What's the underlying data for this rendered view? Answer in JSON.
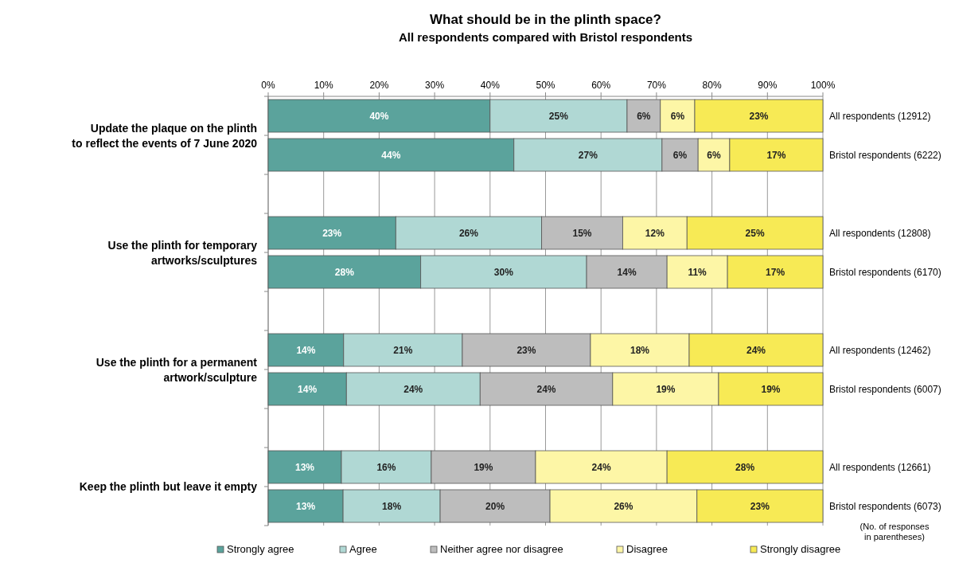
{
  "chart_data": {
    "type": "bar",
    "orientation": "horizontal",
    "stacked": true,
    "title": "What should be in the plinth space?",
    "subtitle": "All respondents compared with Bristol respondents",
    "categories": [
      "All respondents (12912)",
      "Bristol respondents (6222)",
      null,
      "All respondents (12808)",
      "Bristol respondents (6170)",
      null,
      "All respondents (12462)",
      "Bristol respondents (6007)",
      null,
      "All respondents (12661)",
      "Bristol respondents (6073)"
    ],
    "series": [
      {
        "name": "Strongly agree",
        "color": "#5ba39c",
        "values": [
          40.0,
          44.3,
          null,
          23.0,
          27.5,
          null,
          13.6,
          14.1,
          null,
          13.2,
          13.5
        ],
        "value_labels": [
          "40%",
          "44%",
          null,
          "23%",
          "28%",
          null,
          "14%",
          "14%",
          null,
          "13%",
          "13%"
        ]
      },
      {
        "name": "Agree",
        "color": "#b0d8d4",
        "values": [
          24.7,
          26.7,
          null,
          26.3,
          29.9,
          null,
          21.4,
          24.1,
          null,
          16.2,
          17.5
        ],
        "value_labels": [
          "25%",
          "27%",
          null,
          "26%",
          "30%",
          null,
          "21%",
          "24%",
          null,
          "16%",
          "18%"
        ]
      },
      {
        "name": "Neither agree nor disagree",
        "color": "#bdbdbd",
        "values": [
          6.0,
          6.5,
          null,
          14.6,
          14.5,
          null,
          23.1,
          23.9,
          null,
          18.8,
          19.8
        ],
        "value_labels": [
          "6%",
          "6%",
          null,
          "15%",
          "14%",
          null,
          "23%",
          "24%",
          null,
          "19%",
          "20%"
        ]
      },
      {
        "name": "Disagree",
        "color": "#fdf6a6",
        "values": [
          6.2,
          5.7,
          null,
          11.6,
          10.9,
          null,
          17.8,
          19.1,
          null,
          23.7,
          26.5
        ],
        "value_labels": [
          "6%",
          "6%",
          null,
          "12%",
          "11%",
          null,
          "18%",
          "19%",
          null,
          "24%",
          "26%"
        ]
      },
      {
        "name": "Strongly disagree",
        "color": "#f7ea55",
        "values": [
          23.1,
          16.8,
          null,
          24.5,
          17.2,
          null,
          24.1,
          18.8,
          null,
          28.1,
          22.7
        ],
        "value_labels": [
          "23%",
          "17%",
          null,
          "25%",
          "17%",
          null,
          "24%",
          "19%",
          null,
          "28%",
          "23%"
        ]
      }
    ],
    "xlim": [
      0,
      100
    ],
    "xticks": [
      {
        "value": 0,
        "label": "0%"
      },
      {
        "value": 10,
        "label": "10%"
      },
      {
        "value": 20,
        "label": "20%"
      },
      {
        "value": 30,
        "label": "30%"
      },
      {
        "value": 40,
        "label": "40%"
      },
      {
        "value": 50,
        "label": "50%"
      },
      {
        "value": 60,
        "label": "60%"
      },
      {
        "value": 70,
        "label": "70%"
      },
      {
        "value": 80,
        "label": "80%"
      },
      {
        "value": 90,
        "label": "90%"
      },
      {
        "value": 100,
        "label": "100%"
      }
    ],
    "grid": "x",
    "legend": "bottom",
    "annotations": [
      "Update the plaque on the plinth\nto reflect the events of 7 June 2020",
      "Use the plinth for temporary\nartworks/sculptures",
      "Use the plinth for a permanent\nartwork/sculpture",
      "Keep the plinth but leave it empty",
      "(No. of responses\nin parentheses)"
    ]
  }
}
